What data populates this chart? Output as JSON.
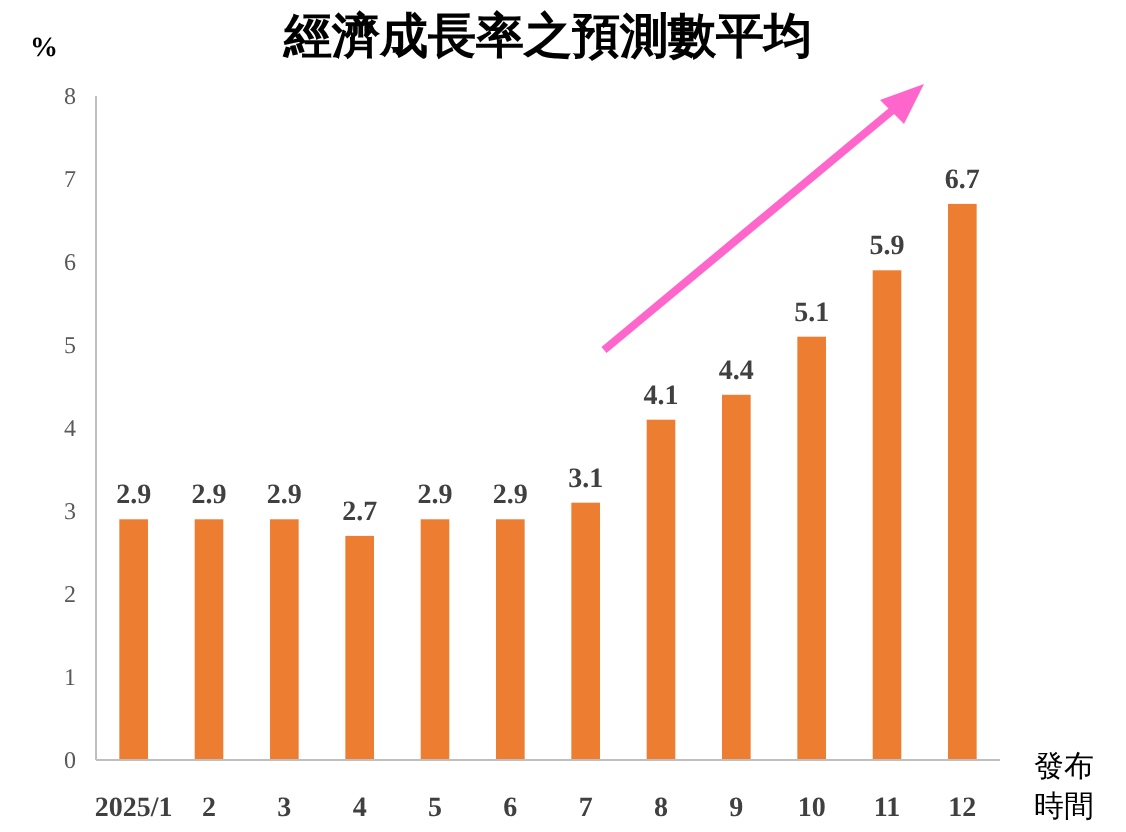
{
  "chart_data": {
    "type": "bar",
    "title": "經濟成長率之預測數平均",
    "ylabel": "%",
    "xlabel": "發布時間",
    "categories": [
      "2025/1",
      "2",
      "3",
      "4",
      "5",
      "6",
      "7",
      "8",
      "9",
      "10",
      "11",
      "12"
    ],
    "values": [
      2.9,
      2.9,
      2.9,
      2.7,
      2.9,
      2.9,
      3.1,
      4.1,
      4.4,
      5.1,
      5.9,
      6.7
    ],
    "color": "#ed7d31",
    "ylim": [
      0,
      8
    ],
    "yticks": [
      0,
      1,
      2,
      3,
      4,
      5,
      6,
      7,
      8
    ],
    "data_labels": true
  }
}
